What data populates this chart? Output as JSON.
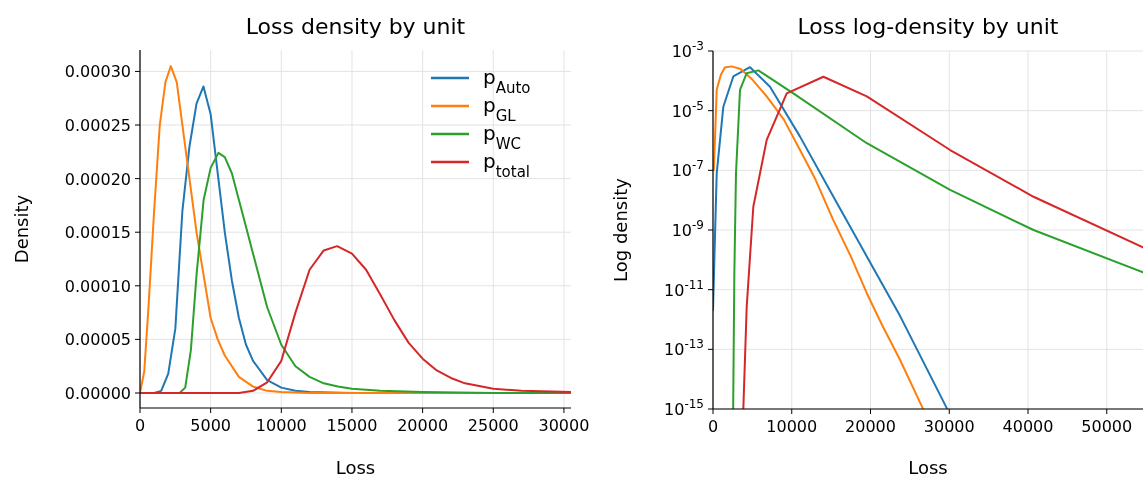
{
  "chart_data": [
    {
      "type": "line",
      "title": "Loss density by unit",
      "xlabel": "Loss",
      "ylabel": "Density",
      "xlim": [
        0,
        30500
      ],
      "ylim": [
        -1.4e-05,
        0.00032
      ],
      "xticks": [
        0,
        5000,
        10000,
        15000,
        20000,
        25000,
        30000
      ],
      "yticks": [
        {
          "value": 0,
          "label": "0.00000"
        },
        {
          "value": 5e-05,
          "label": "0.00005"
        },
        {
          "value": 0.0001,
          "label": "0.00010"
        },
        {
          "value": 0.00015,
          "label": "0.00015"
        },
        {
          "value": 0.0002,
          "label": "0.00020"
        },
        {
          "value": 0.00025,
          "label": "0.00025"
        },
        {
          "value": 0.0003,
          "label": "0.00030"
        }
      ],
      "grid": true,
      "legend": "top right",
      "series": [
        {
          "name": "p$_{Auto}$",
          "color": "#1f77b4",
          "x": [
            0,
            1000,
            1500,
            2000,
            2500,
            3000,
            3500,
            4000,
            4490,
            5000,
            5500,
            6000,
            6500,
            7000,
            7500,
            8000,
            9000,
            10000,
            11000,
            12000,
            15000,
            30500
          ],
          "values": [
            0,
            0,
            2e-06,
            1.8e-05,
            6e-05,
            0.00017,
            0.00023,
            0.00027,
            0.000286,
            0.00026,
            0.000205,
            0.00015,
            0.000105,
            7e-05,
            4.5e-05,
            3e-05,
            1.2e-05,
            5e-06,
            2e-06,
            1e-06,
            0,
            0
          ]
        },
        {
          "name": "p$_{GL}$",
          "color": "#ff7f0e",
          "x": [
            0,
            300,
            600,
            1000,
            1400,
            1800,
            2180,
            2600,
            3000,
            3500,
            4000,
            4500,
            5000,
            5500,
            6000,
            7000,
            8000,
            9000,
            10000,
            12000,
            15000,
            20000,
            30500
          ],
          "values": [
            0,
            2e-05,
            8e-05,
            0.00017,
            0.00025,
            0.00029,
            0.000305,
            0.00029,
            0.00025,
            0.0002,
            0.00015,
            0.00011,
            7e-05,
            5e-05,
            3.5e-05,
            1.5e-05,
            6e-06,
            2e-06,
            1e-06,
            0,
            0,
            0,
            0
          ]
        },
        {
          "name": "p$_{WC}$",
          "color": "#2ca02c",
          "x": [
            0,
            2800,
            3200,
            3600,
            4000,
            4500,
            5000,
            5550,
            6000,
            6500,
            7000,
            7500,
            8000,
            9000,
            10000,
            11000,
            12000,
            13000,
            14000,
            15000,
            17000,
            20000,
            25000,
            30500
          ],
          "values": [
            0,
            0,
            5e-06,
            4e-05,
            0.00011,
            0.00018,
            0.00021,
            0.000224,
            0.00022,
            0.000205,
            0.00018,
            0.000155,
            0.00013,
            8e-05,
            4.5e-05,
            2.5e-05,
            1.5e-05,
            9e-06,
            6e-06,
            4e-06,
            2e-06,
            1e-06,
            0,
            0
          ]
        },
        {
          "name": "p$_{total}$",
          "color": "#d62728",
          "x": [
            0,
            6000,
            7000,
            8000,
            9000,
            10000,
            11000,
            12000,
            13000,
            13950,
            15000,
            16000,
            17000,
            18000,
            19000,
            20000,
            21000,
            22000,
            23000,
            25000,
            27000,
            30500
          ],
          "values": [
            0,
            0,
            0,
            2e-06,
            1e-05,
            3e-05,
            7.5e-05,
            0.000115,
            0.000133,
            0.000137,
            0.00013,
            0.000115,
            9.2e-05,
            6.8e-05,
            4.7e-05,
            3.2e-05,
            2.1e-05,
            1.4e-05,
            9e-06,
            4e-06,
            2e-06,
            1e-06
          ]
        }
      ]
    },
    {
      "type": "line",
      "title": "Loss log-density by unit",
      "xlabel": "Loss",
      "ylabel": "Log density",
      "log": "y",
      "xlim": [
        0,
        54600
      ],
      "ylim": [
        1e-15,
        0.001
      ],
      "xticks": [
        0,
        10000,
        20000,
        30000,
        40000,
        50000
      ],
      "yticks": [
        {
          "value": 1e-15,
          "label": "10$^{-15}$"
        },
        {
          "value": 1e-13,
          "label": "10$^{-13}$"
        },
        {
          "value": 1e-11,
          "label": "10$^{-11}$"
        },
        {
          "value": 1e-09,
          "label": "10$^{-9}$"
        },
        {
          "value": 1e-07,
          "label": "10$^{-7}$"
        },
        {
          "value": 1e-05,
          "label": "10$^{-5}$"
        },
        {
          "value": 0.001,
          "label": "10$^{-3}$"
        }
      ],
      "grid": true,
      "series": [
        {
          "color": "#1f77b4",
          "x": [
            0,
            470,
            1310,
            2580,
            4700,
            7240,
            11050,
            15290,
            19530,
            23760,
            29700
          ],
          "values": [
            2.1e-12,
            7.9e-08,
            1.35e-05,
            0.00014,
            0.000286,
            6.3e-05,
            1.35e-06,
            1.3e-08,
            1.3e-10,
            1.3e-12,
            1.05e-15
          ]
        },
        {
          "color": "#ff7f0e",
          "x": [
            100,
            250,
            470,
            1000,
            1500,
            2370,
            3500,
            5000,
            6820,
            9000,
            11050,
            13000,
            15290,
            17500,
            19530,
            21500,
            23760,
            26640
          ],
          "values": [
            1e-07,
            1.05e-06,
            5e-05,
            0.00016,
            0.00028,
            0.000305,
            0.00025,
            0.00011,
            3e-05,
            5e-06,
            4.8e-07,
            5e-08,
            2.1e-09,
            1.3e-10,
            7.6e-12,
            6.3e-13,
            4.4e-14,
            1.05e-15
          ]
        },
        {
          "color": "#2ca02c",
          "x": [
            2560,
            2710,
            2920,
            3430,
            4280,
            5760,
            10200,
            19530,
            30110,
            40700,
            54600
          ],
          "values": [
            1e-15,
            3.5e-11,
            7.9e-08,
            5e-05,
            0.00018,
            0.000224,
            3.8e-05,
            8.1e-07,
            2.2e-08,
            1e-09,
            3.8e-11
          ]
        },
        {
          "color": "#d62728",
          "x": [
            3850,
            4280,
            5120,
            6820,
            9360,
            14020,
            19530,
            30110,
            40700,
            54600
          ],
          "values": [
            1e-15,
            2.7e-12,
            6e-09,
            1.05e-06,
            3.8e-05,
            0.000137,
            3e-05,
            4.8e-07,
            1.3e-08,
            2.6e-10
          ]
        }
      ]
    }
  ]
}
